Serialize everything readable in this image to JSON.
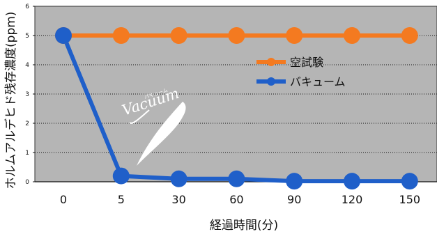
{
  "chart_data": {
    "type": "line",
    "categories": [
      "0",
      "5",
      "30",
      "60",
      "90",
      "120",
      "150"
    ],
    "series": [
      {
        "name": "空試験",
        "values": [
          5,
          5,
          5,
          5,
          5,
          5,
          5
        ],
        "color": "#f47a20"
      },
      {
        "name": "バキューム",
        "values": [
          5,
          0.2,
          0.1,
          0.1,
          0.02,
          0.02,
          0.02
        ],
        "color": "#1f5fc9"
      }
    ],
    "xlabel": "経過時間(分)",
    "ylabel": "ホルムアルデヒド残存濃度(ppm)",
    "ylim": [
      0,
      6
    ],
    "yticks": [
      "0",
      "1",
      "2",
      "3",
      "4",
      "5",
      "6"
    ],
    "grid": true,
    "legend": "inside-right",
    "annotation": {
      "text": "Vacuum",
      "ruby": "バキューム"
    },
    "colors": {
      "plot_bg": "#b5b5b5",
      "grid": "#111111"
    }
  }
}
